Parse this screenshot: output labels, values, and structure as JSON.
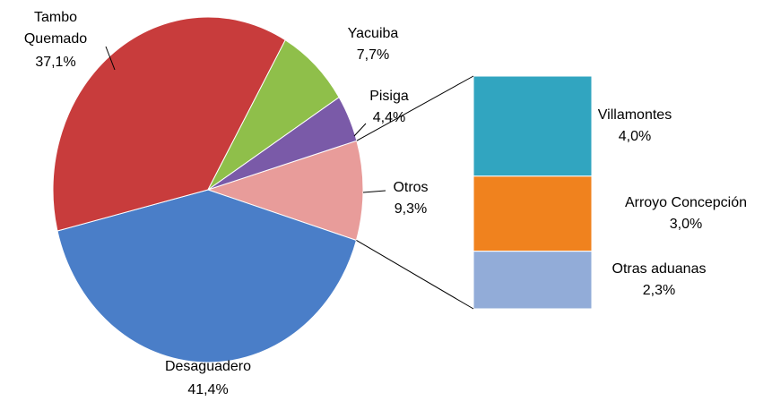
{
  "chart_data": {
    "type": "pie-of-bar",
    "categories": [
      "Otros",
      "Desaguadero",
      "Tambo Quemado",
      "Yacuiba",
      "Pisiga"
    ],
    "values": [
      9.3,
      41.4,
      37.1,
      7.7,
      4.4
    ],
    "value_labels": [
      "9,3%",
      "41,4%",
      "37,1%",
      "7,7%",
      "4,4%"
    ],
    "colors": [
      "#e89c9a",
      "#4a7ec8",
      "#c83c3c",
      "#8fbf4a",
      "#7a5aa8"
    ],
    "bar": {
      "categories": [
        "Villamontes",
        "Arroyo Concepción",
        "Otras aduanas"
      ],
      "values": [
        4.0,
        3.0,
        2.3
      ],
      "value_labels": [
        "4,0%",
        "3,0%",
        "2,3%"
      ],
      "colors": [
        "#31a5c0",
        "#f0821e",
        "#92acd8"
      ]
    }
  }
}
